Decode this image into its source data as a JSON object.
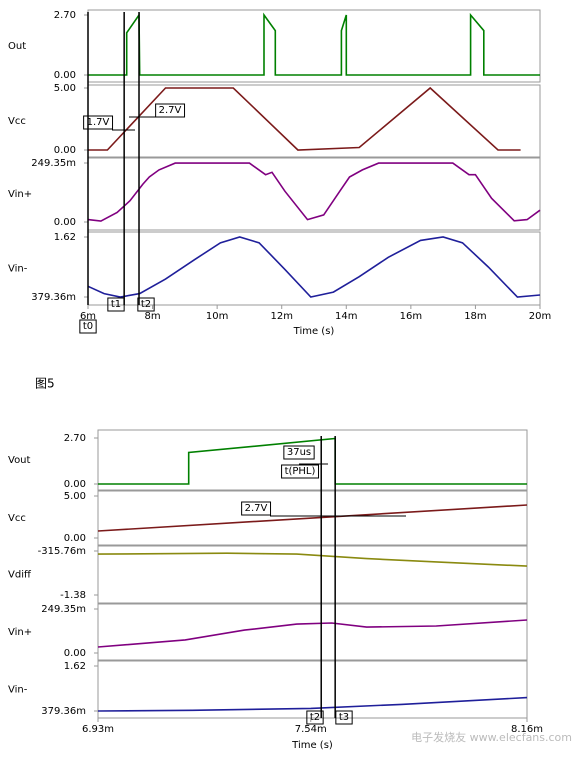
{
  "chart_data": [
    {
      "type": "line",
      "xlabel": "Time (s)",
      "xlim": [
        6,
        20
      ],
      "xticks": [
        {
          "value": 6,
          "label": "6m"
        },
        {
          "value": 8,
          "label": "8m"
        },
        {
          "value": 10,
          "label": "10m"
        },
        {
          "value": 12,
          "label": "12m"
        },
        {
          "value": 14,
          "label": "14m"
        },
        {
          "value": 16,
          "label": "16m"
        },
        {
          "value": 18,
          "label": "18m"
        },
        {
          "value": 20,
          "label": "20m"
        }
      ],
      "panels": [
        {
          "label": "Out",
          "color": "#008000",
          "ylim": [
            0,
            2.7
          ],
          "yticks": [
            {
              "value": 0,
              "label": "0.00"
            },
            {
              "value": 2.7,
              "label": "2.70"
            }
          ],
          "x": [
            6,
            7.2,
            7.2,
            7.58,
            7.6,
            11.45,
            11.45,
            11.8,
            11.8,
            13.85,
            13.85,
            14.0,
            14.0,
            17.85,
            17.85,
            18.26,
            18.26,
            20
          ],
          "values": [
            0,
            0,
            1.9,
            2.7,
            0,
            0,
            2.7,
            2.0,
            0,
            0,
            2.0,
            2.7,
            0,
            0,
            2.7,
            2.0,
            0,
            0
          ]
        },
        {
          "label": "Vcc",
          "color": "#7b1a1a",
          "ylim": [
            0,
            5
          ],
          "yticks": [
            {
              "value": 0,
              "label": "0.00"
            },
            {
              "value": 5,
              "label": "5.00"
            }
          ],
          "x": [
            6,
            6.6,
            8.4,
            10.5,
            12.5,
            14.4,
            16.6,
            18.7,
            19.4
          ],
          "values": [
            0,
            0,
            5,
            5,
            0,
            0.2,
            5,
            0,
            0
          ]
        },
        {
          "label": "Vin+",
          "color": "#800080",
          "ylim": [
            0,
            0.24935
          ],
          "yticks": [
            {
              "value": 0,
              "label": "0.00"
            },
            {
              "value": 0.24935,
              "label": "249.35m"
            }
          ],
          "x": [
            6,
            6.4,
            6.9,
            7.3,
            7.7,
            7.9,
            8.2,
            8.7,
            11.0,
            11.5,
            11.7,
            12.1,
            12.8,
            13.3,
            13.8,
            14.1,
            14.5,
            15.0,
            17.3,
            17.8,
            18.0,
            18.5,
            19.2,
            19.6,
            20
          ],
          "values": [
            0.01,
            0.004,
            0.04,
            0.09,
            0.16,
            0.19,
            0.22,
            0.249,
            0.249,
            0.2,
            0.21,
            0.13,
            0.01,
            0.03,
            0.13,
            0.19,
            0.22,
            0.249,
            0.249,
            0.2,
            0.2,
            0.1,
            0.005,
            0.01,
            0.05
          ]
        },
        {
          "label": "Vin-",
          "color": "#1f1f9a",
          "ylim": [
            0.37936,
            1.62
          ],
          "yticks": [
            {
              "value": 0.37936,
              "label": "379.36m"
            },
            {
              "value": 1.62,
              "label": "1.62"
            }
          ],
          "x": [
            6,
            6.5,
            7.0,
            7.6,
            8.4,
            9.3,
            10.1,
            10.7,
            11.3,
            12.1,
            12.9,
            13.6,
            14.4,
            15.3,
            16.3,
            17.0,
            17.6,
            18.4,
            19.3,
            20
          ],
          "values": [
            0.6,
            0.45,
            0.38,
            0.45,
            0.75,
            1.15,
            1.5,
            1.62,
            1.5,
            0.95,
            0.38,
            0.48,
            0.8,
            1.2,
            1.55,
            1.62,
            1.5,
            1.0,
            0.38,
            0.42
          ]
        }
      ],
      "cursors": [
        {
          "label": "t0",
          "x": 6
        },
        {
          "label": "t1",
          "x": 7.12
        },
        {
          "label": "t2",
          "x": 7.58
        }
      ],
      "annotations": [
        "1.7V",
        "2.7V"
      ]
    },
    {
      "type": "line",
      "xlabel": "Time (s)",
      "xlim": [
        6.93,
        8.16
      ],
      "xticks": [
        {
          "value": 6.93,
          "label": "6.93m"
        },
        {
          "value": 7.54,
          "label": "7.54m"
        },
        {
          "value": 8.16,
          "label": "8.16m"
        }
      ],
      "panels": [
        {
          "label": "Vout",
          "color": "#008000",
          "ylim": [
            0,
            2.7
          ],
          "yticks": [
            {
              "value": 0,
              "label": "0.00"
            },
            {
              "value": 2.7,
              "label": "2.70"
            }
          ],
          "x": [
            6.93,
            7.19,
            7.19,
            7.61,
            7.61,
            8.16
          ],
          "values": [
            0,
            0,
            1.85,
            2.67,
            0,
            0
          ]
        },
        {
          "label": "Vcc",
          "color": "#7b1a1a",
          "ylim": [
            0,
            5
          ],
          "yticks": [
            {
              "value": 0,
              "label": "0.00"
            },
            {
              "value": 5,
              "label": "5.00"
            }
          ],
          "x": [
            6.93,
            8.16
          ],
          "values": [
            0.83,
            3.93
          ]
        },
        {
          "label": "Vdiff",
          "color": "#8a8a10",
          "ylim": [
            -1.38,
            -0.31576
          ],
          "yticks": [
            {
              "value": -1.38,
              "label": "-1.38"
            },
            {
              "value": -0.31576,
              "label": "-315.76m"
            }
          ],
          "x": [
            6.93,
            7.3,
            7.5,
            7.7,
            7.9,
            8.16
          ],
          "values": [
            -0.39,
            -0.37,
            -0.39,
            -0.5,
            -0.58,
            -0.68
          ]
        },
        {
          "label": "Vin+",
          "color": "#800080",
          "ylim": [
            0,
            0.24935
          ],
          "yticks": [
            {
              "value": 0,
              "label": "0.00"
            },
            {
              "value": 0.24935,
              "label": "249.35m"
            }
          ],
          "x": [
            6.93,
            7.18,
            7.35,
            7.5,
            7.6,
            7.7,
            7.9,
            8.16
          ],
          "values": [
            0.034,
            0.074,
            0.13,
            0.164,
            0.17,
            0.147,
            0.153,
            0.187
          ]
        },
        {
          "label": "Vin-",
          "color": "#1f1f9a",
          "ylim": [
            0.37936,
            1.62
          ],
          "yticks": [
            {
              "value": 0.37936,
              "label": "379.36m"
            },
            {
              "value": 1.62,
              "label": "1.62"
            }
          ],
          "x": [
            6.93,
            7.2,
            7.54,
            7.8,
            8.16
          ],
          "values": [
            0.38,
            0.4,
            0.45,
            0.56,
            0.75
          ]
        }
      ],
      "cursors": [
        {
          "label": "t2",
          "x": 7.57
        },
        {
          "label": "t3",
          "x": 7.61
        }
      ],
      "annotations": [
        "37us",
        "t(PHL)",
        "2.7V"
      ]
    }
  ],
  "caption": "图5",
  "watermark": "电子发烧友 www.elecfans.com"
}
